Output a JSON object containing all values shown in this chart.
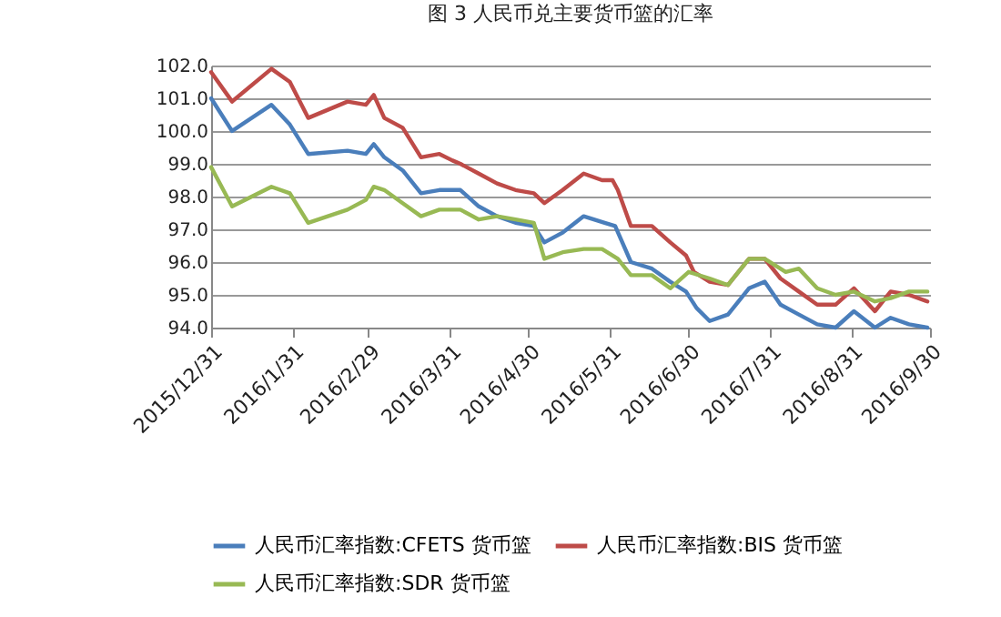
{
  "chart_data": {
    "type": "line",
    "title": "图 3   人民币兑主要货币篮的汇率",
    "xlim": [
      "2015-12-31",
      "2016-09-30"
    ],
    "xticks": [
      {
        "value": "2015-12-31",
        "label": "2015/12/31"
      },
      {
        "value": "2016-01-31",
        "label": "2016/1/31"
      },
      {
        "value": "2016-02-29",
        "label": "2016/2/29"
      },
      {
        "value": "2016-03-31",
        "label": "2016/3/31"
      },
      {
        "value": "2016-04-30",
        "label": "2016/4/30"
      },
      {
        "value": "2016-05-31",
        "label": "2016/5/31"
      },
      {
        "value": "2016-06-30",
        "label": "2016/6/30"
      },
      {
        "value": "2016-07-31",
        "label": "2016/7/31"
      },
      {
        "value": "2016-08-31",
        "label": "2016/8/31"
      },
      {
        "value": "2016-09-30",
        "label": "2016/9/30"
      }
    ],
    "ylim": [
      94,
      102
    ],
    "yticks": [
      {
        "value": 94,
        "label": "94.0"
      },
      {
        "value": 95,
        "label": "95.0"
      },
      {
        "value": 96,
        "label": "96.0"
      },
      {
        "value": 97,
        "label": "97.0"
      },
      {
        "value": 98,
        "label": "98.0"
      },
      {
        "value": 99,
        "label": "99.0"
      },
      {
        "value": 100,
        "label": "100.0"
      },
      {
        "value": 101,
        "label": "101.0"
      },
      {
        "value": 102,
        "label": "102.0"
      }
    ],
    "grid": "y",
    "legend": "bottom",
    "series": [
      {
        "name": "人民币汇率指数:CFETS 货币篮",
        "color": "#4a7ebb",
        "x": [
          "2015-12-31",
          "2016-01-08",
          "2016-01-23",
          "2016-01-30",
          "2016-02-06",
          "2016-02-21",
          "2016-02-28",
          "2016-03-02",
          "2016-03-06",
          "2016-03-13",
          "2016-03-20",
          "2016-03-27",
          "2016-04-04",
          "2016-04-11",
          "2016-04-18",
          "2016-04-25",
          "2016-05-02",
          "2016-05-06",
          "2016-05-13",
          "2016-05-21",
          "2016-05-29",
          "2016-06-02",
          "2016-06-08",
          "2016-06-16",
          "2016-06-23",
          "2016-06-29",
          "2016-07-03",
          "2016-07-08",
          "2016-07-15",
          "2016-07-23",
          "2016-07-29",
          "2016-08-04",
          "2016-08-11",
          "2016-08-18",
          "2016-08-25",
          "2016-09-01",
          "2016-09-09",
          "2016-09-15",
          "2016-09-22",
          "2016-09-29"
        ],
        "values": [
          101.0,
          100.0,
          100.8,
          100.2,
          99.3,
          99.4,
          99.3,
          99.6,
          99.2,
          98.8,
          98.1,
          98.2,
          98.2,
          97.7,
          97.4,
          97.2,
          97.1,
          96.6,
          96.9,
          97.4,
          97.2,
          97.1,
          96.0,
          95.8,
          95.4,
          95.1,
          94.6,
          94.2,
          94.4,
          95.2,
          95.4,
          94.7,
          94.4,
          94.1,
          94.0,
          94.5,
          94.0,
          94.3,
          94.1,
          94.0
        ]
      },
      {
        "name": "人民币汇率指数:BIS 货币篮",
        "color": "#be4b48",
        "x": [
          "2015-12-31",
          "2016-01-08",
          "2016-01-23",
          "2016-01-30",
          "2016-02-06",
          "2016-02-21",
          "2016-02-28",
          "2016-03-02",
          "2016-03-06",
          "2016-03-13",
          "2016-03-20",
          "2016-03-27",
          "2016-04-01",
          "2016-04-04",
          "2016-04-11",
          "2016-04-18",
          "2016-04-25",
          "2016-05-02",
          "2016-05-06",
          "2016-05-13",
          "2016-05-21",
          "2016-05-28",
          "2016-06-01",
          "2016-06-03",
          "2016-06-08",
          "2016-06-16",
          "2016-06-23",
          "2016-06-29",
          "2016-07-02",
          "2016-07-08",
          "2016-07-15",
          "2016-07-23",
          "2016-07-29",
          "2016-08-04",
          "2016-08-11",
          "2016-08-18",
          "2016-08-25",
          "2016-09-01",
          "2016-09-09",
          "2016-09-15",
          "2016-09-22",
          "2016-09-29"
        ],
        "values": [
          101.8,
          100.9,
          101.9,
          101.5,
          100.4,
          100.9,
          100.8,
          101.1,
          100.4,
          100.1,
          99.2,
          99.3,
          99.1,
          99.0,
          98.7,
          98.4,
          98.2,
          98.1,
          97.8,
          98.2,
          98.7,
          98.5,
          98.5,
          98.2,
          97.1,
          97.1,
          96.6,
          96.2,
          95.7,
          95.4,
          95.3,
          96.1,
          96.1,
          95.5,
          95.1,
          94.7,
          94.7,
          95.2,
          94.5,
          95.1,
          95.0,
          94.8
        ]
      },
      {
        "name": "人民币汇率指数:SDR 货币篮",
        "color": "#98b954",
        "x": [
          "2015-12-31",
          "2016-01-08",
          "2016-01-23",
          "2016-01-30",
          "2016-02-06",
          "2016-02-21",
          "2016-02-28",
          "2016-03-02",
          "2016-03-06",
          "2016-03-13",
          "2016-03-20",
          "2016-03-27",
          "2016-04-04",
          "2016-04-11",
          "2016-04-18",
          "2016-04-25",
          "2016-05-02",
          "2016-05-06",
          "2016-05-13",
          "2016-05-21",
          "2016-05-28",
          "2016-06-03",
          "2016-06-08",
          "2016-06-16",
          "2016-06-23",
          "2016-06-30",
          "2016-07-08",
          "2016-07-15",
          "2016-07-23",
          "2016-07-29",
          "2016-08-06",
          "2016-08-11",
          "2016-08-18",
          "2016-08-25",
          "2016-09-01",
          "2016-09-09",
          "2016-09-15",
          "2016-09-22",
          "2016-09-29"
        ],
        "values": [
          98.9,
          97.7,
          98.3,
          98.1,
          97.2,
          97.6,
          97.9,
          98.3,
          98.2,
          97.8,
          97.4,
          97.6,
          97.6,
          97.3,
          97.4,
          97.3,
          97.2,
          96.1,
          96.3,
          96.4,
          96.4,
          96.1,
          95.6,
          95.6,
          95.2,
          95.7,
          95.5,
          95.3,
          96.1,
          96.1,
          95.7,
          95.8,
          95.2,
          95.0,
          95.1,
          94.8,
          94.9,
          95.1,
          95.1
        ]
      }
    ]
  }
}
